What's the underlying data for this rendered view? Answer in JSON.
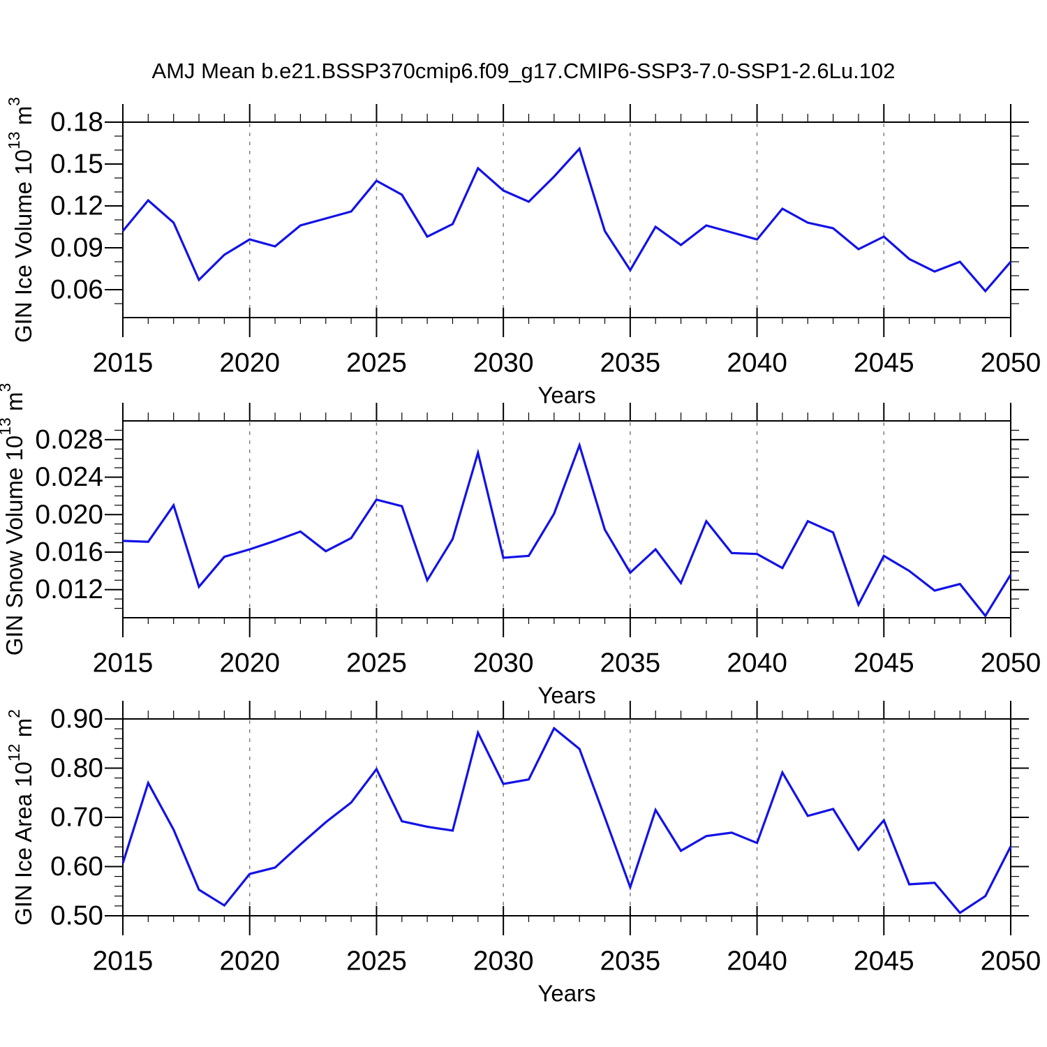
{
  "title": "AMJ Mean b.e21.BSSP370cmip6.f09_g17.CMIP6-SSP3-7.0-SSP1-2.6Lu.102",
  "colors": {
    "line": "#1212e8",
    "grid": "#808080",
    "axis": "#000000",
    "background": "#ffffff",
    "text": "#000000"
  },
  "x_axis": {
    "label": "Years",
    "range": [
      2015,
      2050
    ],
    "ticks": [
      2015,
      2020,
      2025,
      2030,
      2035,
      2040,
      2045,
      2050
    ],
    "tick_labels": [
      "2015",
      "2020",
      "2025",
      "2030",
      "2035",
      "2040",
      "2045",
      "2050"
    ],
    "minor_step": 1,
    "gridlines": [
      2020,
      2025,
      2030,
      2035,
      2040,
      2045
    ]
  },
  "chart_data": [
    {
      "type": "line",
      "name": "gin-ice-volume",
      "title": "",
      "ylabel": "GIN Ice Volume 10^{13} m^{3}",
      "xlabel": "Years",
      "legend": "none",
      "grid": "vertical-dashed",
      "line_color": "#1212e8",
      "ylim": [
        0.04,
        0.18
      ],
      "yticks": [
        0.06,
        0.09,
        0.12,
        0.15,
        0.18
      ],
      "ytick_labels": [
        "0.06",
        "0.09",
        "0.12",
        "0.15",
        "0.18"
      ],
      "yminor_step": 0.01,
      "x": [
        2015,
        2016,
        2017,
        2018,
        2019,
        2020,
        2021,
        2022,
        2023,
        2024,
        2025,
        2026,
        2027,
        2028,
        2029,
        2030,
        2031,
        2032,
        2033,
        2034,
        2035,
        2036,
        2037,
        2038,
        2039,
        2040,
        2041,
        2042,
        2043,
        2044,
        2045,
        2046,
        2047,
        2048,
        2049,
        2050
      ],
      "values": [
        0.102,
        0.124,
        0.108,
        0.067,
        0.085,
        0.096,
        0.091,
        0.106,
        0.111,
        0.116,
        0.138,
        0.128,
        0.098,
        0.107,
        0.147,
        0.131,
        0.123,
        0.141,
        0.161,
        0.102,
        0.074,
        0.105,
        0.092,
        0.106,
        0.101,
        0.096,
        0.118,
        0.108,
        0.104,
        0.089,
        0.098,
        0.082,
        0.073,
        0.08,
        0.059,
        0.08
      ]
    },
    {
      "type": "line",
      "name": "gin-snow-volume",
      "title": "",
      "ylabel": "GIN Snow Volume 10^{13} m^{3}",
      "xlabel": "Years",
      "legend": "none",
      "grid": "vertical-dashed",
      "line_color": "#1212e8",
      "ylim": [
        0.009,
        0.03
      ],
      "yticks": [
        0.012,
        0.016,
        0.02,
        0.024,
        0.028
      ],
      "ytick_labels": [
        "0.012",
        "0.016",
        "0.020",
        "0.024",
        "0.028"
      ],
      "yminor_step": 0.001,
      "x": [
        2015,
        2016,
        2017,
        2018,
        2019,
        2020,
        2021,
        2022,
        2023,
        2024,
        2025,
        2026,
        2027,
        2028,
        2029,
        2030,
        2031,
        2032,
        2033,
        2034,
        2035,
        2036,
        2037,
        2038,
        2039,
        2040,
        2041,
        2042,
        2043,
        2044,
        2045,
        2046,
        2047,
        2048,
        2049,
        2050
      ],
      "values": [
        0.0172,
        0.0171,
        0.021,
        0.0123,
        0.0155,
        0.0163,
        0.0172,
        0.0182,
        0.0161,
        0.0175,
        0.0216,
        0.0209,
        0.013,
        0.0174,
        0.0266,
        0.0154,
        0.0156,
        0.0201,
        0.0274,
        0.0184,
        0.0138,
        0.0163,
        0.0127,
        0.0193,
        0.0159,
        0.0158,
        0.0143,
        0.0193,
        0.0181,
        0.0104,
        0.0156,
        0.014,
        0.0119,
        0.0126,
        0.0092,
        0.0136
      ]
    },
    {
      "type": "line",
      "name": "gin-ice-area",
      "title": "",
      "ylabel": "GIN Ice Area 10^{12} m^{2}",
      "xlabel": "Years",
      "legend": "none",
      "grid": "vertical-dashed",
      "line_color": "#1212e8",
      "ylim": [
        0.5,
        0.9
      ],
      "yticks": [
        0.5,
        0.6,
        0.7,
        0.8,
        0.9
      ],
      "ytick_labels": [
        "0.50",
        "0.60",
        "0.70",
        "0.80",
        "0.90"
      ],
      "yminor_step": 0.02,
      "x": [
        2015,
        2016,
        2017,
        2018,
        2019,
        2020,
        2021,
        2022,
        2023,
        2024,
        2025,
        2026,
        2027,
        2028,
        2029,
        2030,
        2031,
        2032,
        2033,
        2034,
        2035,
        2036,
        2037,
        2038,
        2039,
        2040,
        2041,
        2042,
        2043,
        2044,
        2045,
        2046,
        2047,
        2048,
        2049,
        2050
      ],
      "values": [
        0.607,
        0.77,
        0.675,
        0.553,
        0.521,
        0.585,
        0.598,
        0.645,
        0.69,
        0.73,
        0.798,
        0.692,
        0.681,
        0.673,
        0.872,
        0.768,
        0.777,
        0.881,
        0.839,
        0.7,
        0.558,
        0.715,
        0.632,
        0.662,
        0.669,
        0.648,
        0.791,
        0.703,
        0.717,
        0.634,
        0.694,
        0.564,
        0.567,
        0.506,
        0.54,
        0.641
      ]
    }
  ]
}
